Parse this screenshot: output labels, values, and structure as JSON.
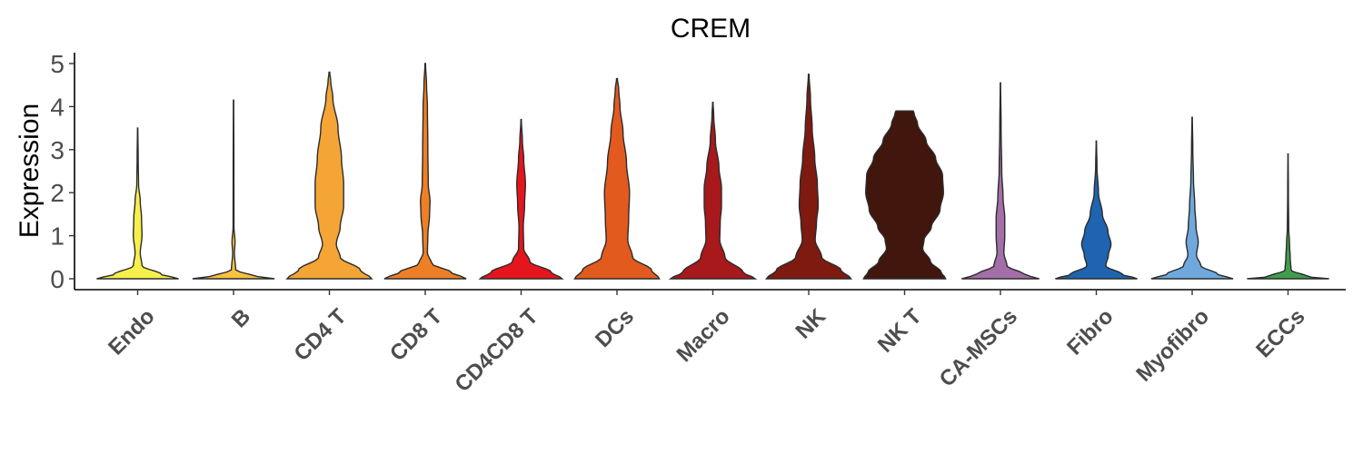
{
  "chart_data": {
    "type": "violin",
    "title": "CREM",
    "ylabel": "Expression",
    "xlabel": "",
    "ylim": [
      0,
      5
    ],
    "yticks": [
      0,
      1,
      2,
      3,
      4,
      5
    ],
    "grid": false,
    "legend": "none",
    "categories": [
      "Endo",
      "B",
      "CD4 T",
      "CD8 T",
      "CD4CD8 T",
      "DCs",
      "Macro",
      "NK",
      "NK T",
      "CA-MSCs",
      "Fibro",
      "Myofibro",
      "ECCs"
    ],
    "series": [
      {
        "category": "Endo",
        "color": "#F7F04A",
        "max": 3.5,
        "profile": [
          [
            0,
            0.95
          ],
          [
            0.1,
            0.55
          ],
          [
            0.3,
            0.1
          ],
          [
            0.6,
            0.06
          ],
          [
            1.0,
            0.1
          ],
          [
            1.4,
            0.09
          ],
          [
            1.8,
            0.06
          ],
          [
            2.2,
            0.02
          ],
          [
            2.8,
            0.012
          ],
          [
            3.5,
            0.004
          ]
        ]
      },
      {
        "category": "B",
        "color": "#F5C242",
        "max": 4.15,
        "profile": [
          [
            0,
            0.95
          ],
          [
            0.08,
            0.4
          ],
          [
            0.2,
            0.05
          ],
          [
            0.6,
            0.02
          ],
          [
            0.85,
            0.035
          ],
          [
            1.2,
            0.01
          ],
          [
            2.5,
            0.008
          ],
          [
            4.15,
            0.004
          ]
        ]
      },
      {
        "category": "CD4 T",
        "color": "#F4A535",
        "max": 4.8,
        "profile": [
          [
            0,
            0.98
          ],
          [
            0.2,
            0.72
          ],
          [
            0.5,
            0.25
          ],
          [
            0.8,
            0.16
          ],
          [
            1.2,
            0.25
          ],
          [
            1.7,
            0.33
          ],
          [
            2.2,
            0.33
          ],
          [
            2.8,
            0.28
          ],
          [
            3.5,
            0.2
          ],
          [
            4.2,
            0.08
          ],
          [
            4.6,
            0.03
          ],
          [
            4.8,
            0.008
          ]
        ]
      },
      {
        "category": "CD8 T",
        "color": "#EE7F25",
        "max": 5.0,
        "profile": [
          [
            0,
            0.95
          ],
          [
            0.15,
            0.6
          ],
          [
            0.35,
            0.15
          ],
          [
            0.6,
            0.05
          ],
          [
            1.0,
            0.06
          ],
          [
            1.5,
            0.1
          ],
          [
            1.8,
            0.11
          ],
          [
            2.2,
            0.07
          ],
          [
            3.0,
            0.06
          ],
          [
            4.0,
            0.05
          ],
          [
            4.5,
            0.03
          ],
          [
            5.0,
            0.006
          ]
        ]
      },
      {
        "category": "CD4CD8 T",
        "color": "#E5151D",
        "max": 3.7,
        "profile": [
          [
            0,
            0.95
          ],
          [
            0.15,
            0.7
          ],
          [
            0.4,
            0.2
          ],
          [
            0.7,
            0.06
          ],
          [
            1.2,
            0.05
          ],
          [
            1.7,
            0.08
          ],
          [
            2.2,
            0.1
          ],
          [
            2.8,
            0.06
          ],
          [
            3.2,
            0.03
          ],
          [
            3.7,
            0.005
          ]
        ]
      },
      {
        "category": "DCs",
        "color": "#E35A1E",
        "max": 4.65,
        "profile": [
          [
            0,
            0.98
          ],
          [
            0.2,
            0.8
          ],
          [
            0.5,
            0.36
          ],
          [
            0.9,
            0.25
          ],
          [
            1.4,
            0.27
          ],
          [
            2.0,
            0.29
          ],
          [
            2.7,
            0.22
          ],
          [
            3.4,
            0.14
          ],
          [
            4.0,
            0.07
          ],
          [
            4.4,
            0.04
          ],
          [
            4.65,
            0.01
          ]
        ]
      },
      {
        "category": "Macro",
        "color": "#A7191B",
        "max": 4.1,
        "profile": [
          [
            0,
            0.98
          ],
          [
            0.15,
            0.7
          ],
          [
            0.5,
            0.28
          ],
          [
            0.9,
            0.16
          ],
          [
            1.3,
            0.17
          ],
          [
            1.7,
            0.2
          ],
          [
            2.1,
            0.2
          ],
          [
            2.6,
            0.14
          ],
          [
            3.2,
            0.06
          ],
          [
            3.8,
            0.02
          ],
          [
            4.1,
            0.005
          ]
        ]
      },
      {
        "category": "NK",
        "color": "#7E1A10",
        "max": 4.75,
        "profile": [
          [
            0,
            0.98
          ],
          [
            0.2,
            0.75
          ],
          [
            0.5,
            0.3
          ],
          [
            0.9,
            0.15
          ],
          [
            1.3,
            0.18
          ],
          [
            1.7,
            0.22
          ],
          [
            2.2,
            0.2
          ],
          [
            2.8,
            0.14
          ],
          [
            3.5,
            0.08
          ],
          [
            4.2,
            0.04
          ],
          [
            4.75,
            0.008
          ]
        ]
      },
      {
        "category": "NK T",
        "color": "#41160D",
        "max": 3.9,
        "profile": [
          [
            0,
            0.95
          ],
          [
            0.15,
            0.85
          ],
          [
            0.4,
            0.6
          ],
          [
            0.7,
            0.42
          ],
          [
            0.9,
            0.45
          ],
          [
            1.2,
            0.62
          ],
          [
            1.6,
            0.82
          ],
          [
            2.0,
            0.9
          ],
          [
            2.4,
            0.88
          ],
          [
            2.8,
            0.72
          ],
          [
            3.2,
            0.5
          ],
          [
            3.6,
            0.3
          ],
          [
            3.85,
            0.22
          ],
          [
            3.9,
            0.2
          ]
        ]
      },
      {
        "category": "CA-MSCs",
        "color": "#A46EA8",
        "max": 4.55,
        "profile": [
          [
            0,
            0.9
          ],
          [
            0.1,
            0.55
          ],
          [
            0.3,
            0.15
          ],
          [
            0.6,
            0.08
          ],
          [
            1.0,
            0.1
          ],
          [
            1.4,
            0.1
          ],
          [
            1.9,
            0.06
          ],
          [
            2.5,
            0.03
          ],
          [
            3.5,
            0.015
          ],
          [
            4.55,
            0.004
          ]
        ]
      },
      {
        "category": "Fibro",
        "color": "#1E64B0",
        "max": 3.2,
        "profile": [
          [
            0,
            0.95
          ],
          [
            0.1,
            0.6
          ],
          [
            0.3,
            0.22
          ],
          [
            0.55,
            0.28
          ],
          [
            0.8,
            0.34
          ],
          [
            1.1,
            0.27
          ],
          [
            1.5,
            0.14
          ],
          [
            2.0,
            0.05
          ],
          [
            2.6,
            0.015
          ],
          [
            3.2,
            0.004
          ]
        ]
      },
      {
        "category": "Myofibro",
        "color": "#6FA8DC",
        "max": 3.75,
        "profile": [
          [
            0,
            0.95
          ],
          [
            0.1,
            0.6
          ],
          [
            0.3,
            0.2
          ],
          [
            0.55,
            0.1
          ],
          [
            0.85,
            0.14
          ],
          [
            1.2,
            0.09
          ],
          [
            1.7,
            0.06
          ],
          [
            2.3,
            0.03
          ],
          [
            3.0,
            0.015
          ],
          [
            3.75,
            0.004
          ]
        ]
      },
      {
        "category": "ECCs",
        "color": "#3F9E4C",
        "max": 2.9,
        "profile": [
          [
            0,
            0.95
          ],
          [
            0.05,
            0.45
          ],
          [
            0.2,
            0.07
          ],
          [
            0.5,
            0.05
          ],
          [
            0.8,
            0.035
          ],
          [
            1.2,
            0.015
          ],
          [
            2.0,
            0.008
          ],
          [
            2.9,
            0.003
          ]
        ]
      }
    ]
  }
}
